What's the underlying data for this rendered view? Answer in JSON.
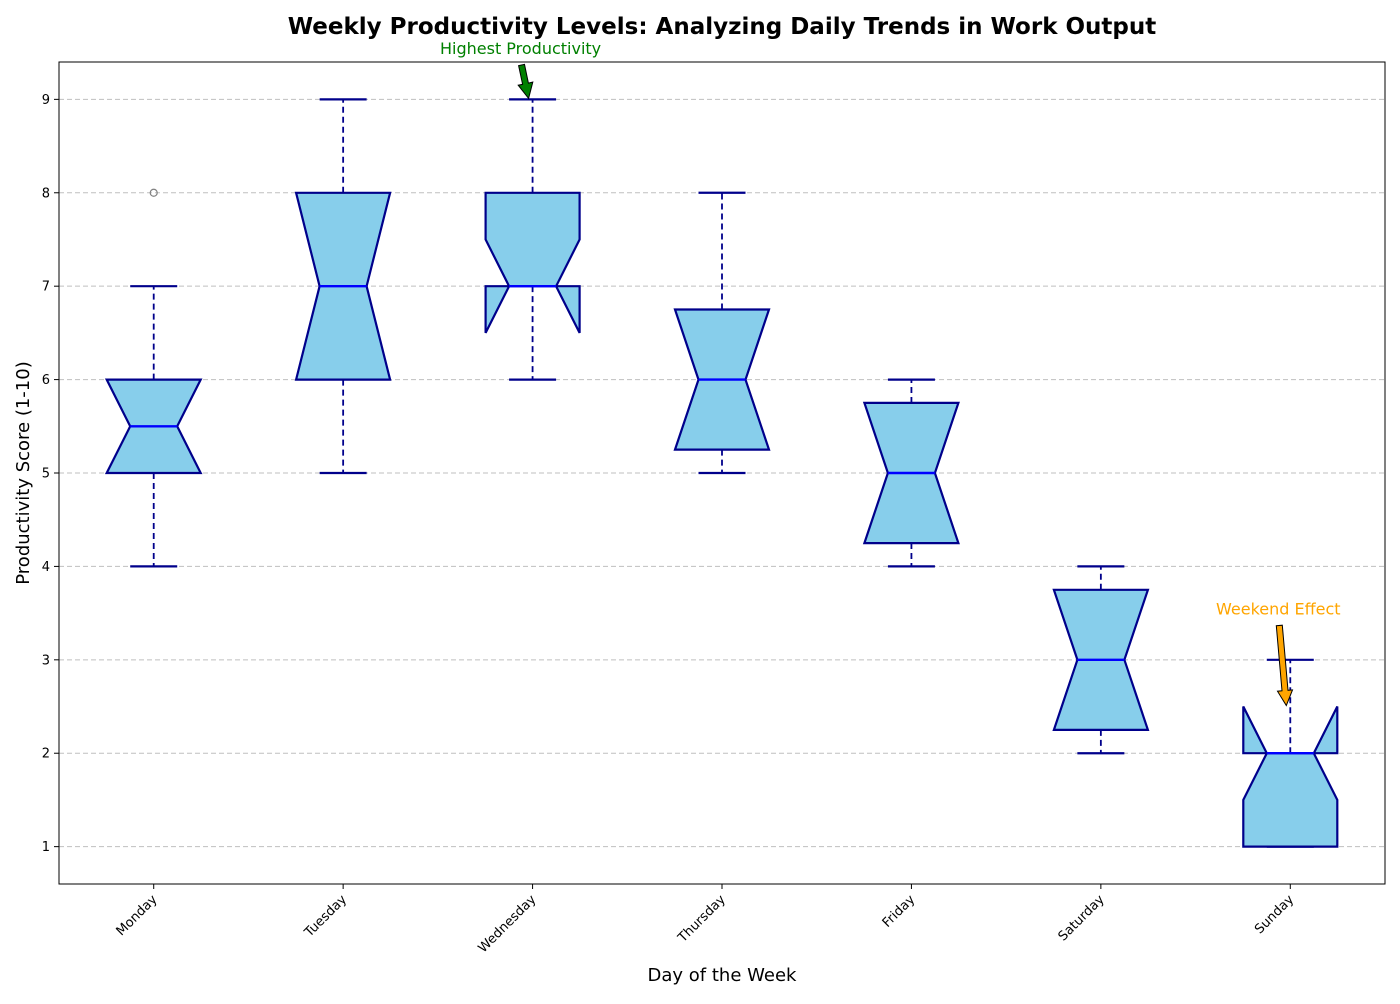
{
  "chart_data": {
    "type": "box",
    "title": "Weekly Productivity Levels: Analyzing Daily Trends in Work Output",
    "xlabel": "Day of the Week",
    "ylabel": "Productivity Score (1-10)",
    "ylim": [
      0.6,
      9.4
    ],
    "yticks": [
      1,
      2,
      3,
      4,
      5,
      6,
      7,
      8,
      9
    ],
    "grid": "y-dashed",
    "categories": [
      "Monday",
      "Tuesday",
      "Wednesday",
      "Thursday",
      "Friday",
      "Saturday",
      "Sunday"
    ],
    "boxes": [
      {
        "category": "Monday",
        "whisker_low": 4,
        "q1": 5,
        "median": 5.5,
        "q3": 6,
        "whisker_high": 7,
        "notch_low": 5,
        "notch_high": 6,
        "outliers": [
          8
        ]
      },
      {
        "category": "Tuesday",
        "whisker_low": 5,
        "q1": 6,
        "median": 7,
        "q3": 8,
        "whisker_high": 9,
        "notch_low": 6,
        "notch_high": 8,
        "outliers": []
      },
      {
        "category": "Wednesday",
        "whisker_low": 6,
        "q1": 7,
        "median": 7,
        "q3": 8,
        "whisker_high": 9,
        "notch_low": 6.5,
        "notch_high": 7.5,
        "outliers": []
      },
      {
        "category": "Thursday",
        "whisker_low": 5,
        "q1": 5.25,
        "median": 6,
        "q3": 6.75,
        "whisker_high": 8,
        "notch_low": 5.25,
        "notch_high": 6.75,
        "outliers": []
      },
      {
        "category": "Friday",
        "whisker_low": 4,
        "q1": 4.25,
        "median": 5,
        "q3": 5.75,
        "whisker_high": 6,
        "notch_low": 4.25,
        "notch_high": 5.75,
        "outliers": []
      },
      {
        "category": "Saturday",
        "whisker_low": 2,
        "q1": 2.25,
        "median": 3,
        "q3": 3.75,
        "whisker_high": 4,
        "notch_low": 2.25,
        "notch_high": 3.75,
        "outliers": []
      },
      {
        "category": "Sunday",
        "whisker_low": 1,
        "q1": 1,
        "median": 2,
        "q3": 2,
        "whisker_high": 3,
        "notch_low": 1.5,
        "notch_high": 2.5,
        "outliers": []
      }
    ],
    "annotations": [
      {
        "text": "Highest Productivity",
        "category": "Wednesday",
        "target": 9,
        "text_y": 9.55,
        "color": "#008000"
      },
      {
        "text": "Weekend Effect",
        "category": "Sunday",
        "target": 2.5,
        "text_y": 3.55,
        "color": "#FFA500"
      }
    ],
    "colors": {
      "box_fill": "#87CEEB",
      "box_edge": "#00008B",
      "median": "#0000FF",
      "whisker": "#00008B",
      "grid": "#b0b0b0",
      "outlier": "#808080"
    }
  }
}
